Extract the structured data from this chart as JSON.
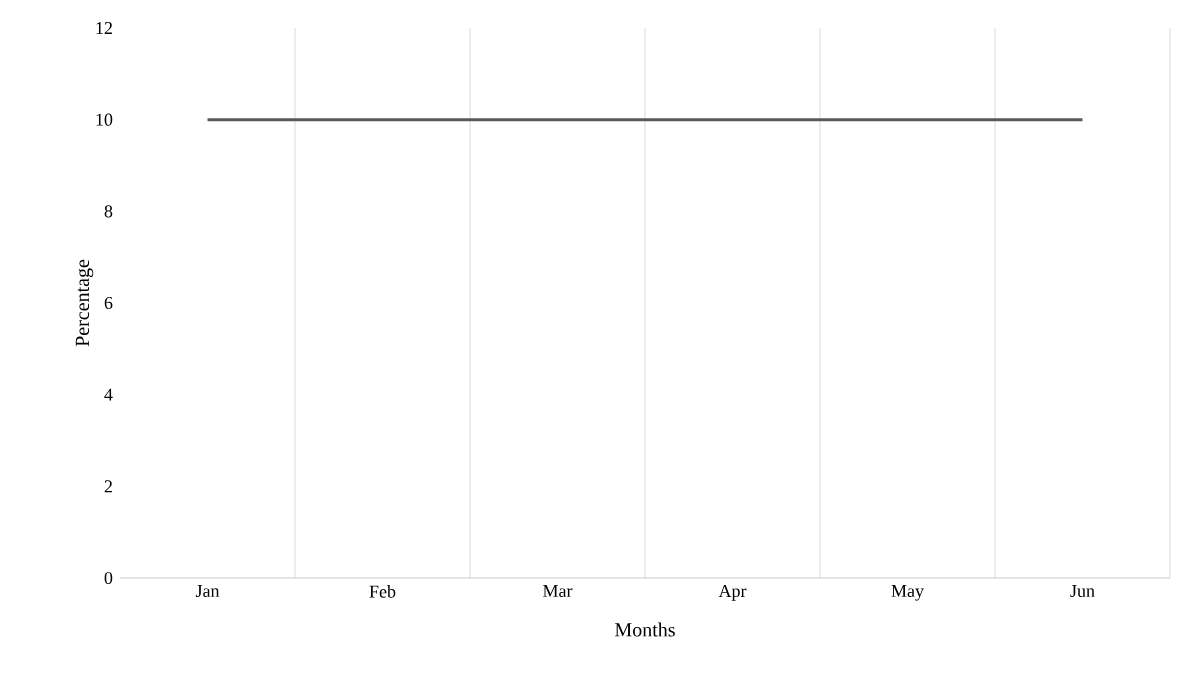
{
  "chart_data": {
    "type": "line",
    "xlabel": "Months",
    "ylabel": "Percentage",
    "categories": [
      "Jan",
      "Feb",
      "Mar",
      "Apr",
      "May",
      "Jun"
    ],
    "series": [
      {
        "color": "#595959",
        "values": [
          10,
          10,
          10,
          10,
          10,
          10
        ]
      }
    ],
    "ylim": [
      0,
      12
    ],
    "yticks": [
      0,
      2,
      4,
      6,
      8,
      10,
      12
    ],
    "grid": "x",
    "marker": "none",
    "line_style": "solid"
  }
}
